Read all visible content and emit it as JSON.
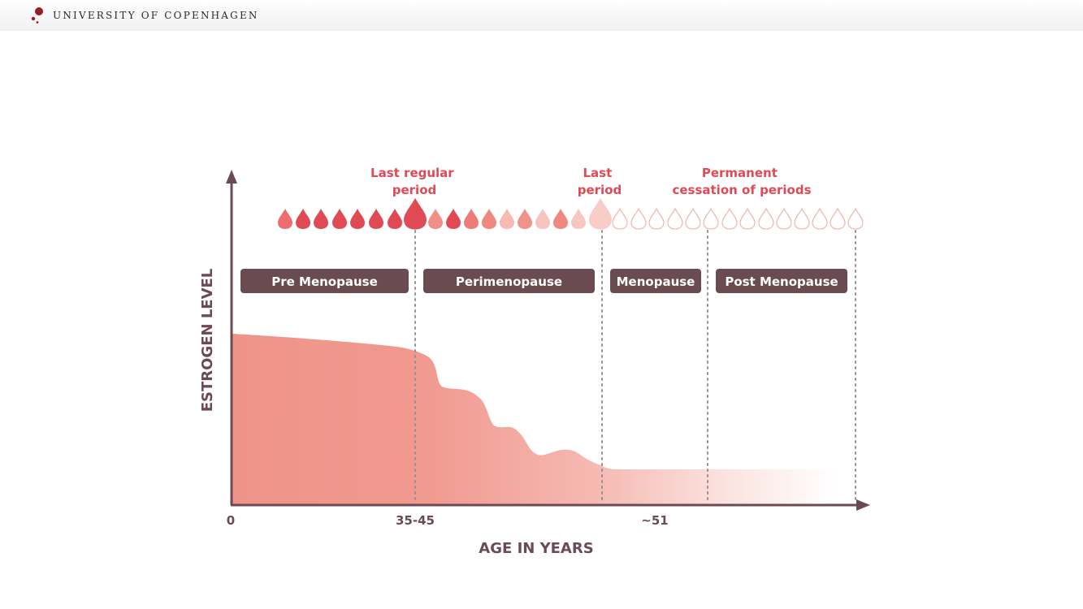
{
  "header": {
    "brand_name": "UNIVERSITY OF COPENHAGEN"
  },
  "diagram": {
    "y_axis_label": "ESTROGEN LEVEL",
    "x_axis_label": "AGE IN YEARS",
    "x_ticks": [
      "0",
      "35-45",
      "~51"
    ],
    "milestones": {
      "last_regular_period": [
        "Last regular",
        "period"
      ],
      "last_period": [
        "Last",
        "period"
      ],
      "permanent_cessation": [
        "Permanent",
        "cessation of periods"
      ]
    },
    "stages": [
      "Pre Menopause",
      "Perimenopause",
      "Menopause",
      "Post Menopause"
    ],
    "colors": {
      "accent_red": "#e04a55",
      "stage_box": "#6b4b52",
      "axis": "#6b4b52",
      "area": "#ef9388",
      "dotted_line": "#9a8f90"
    }
  }
}
